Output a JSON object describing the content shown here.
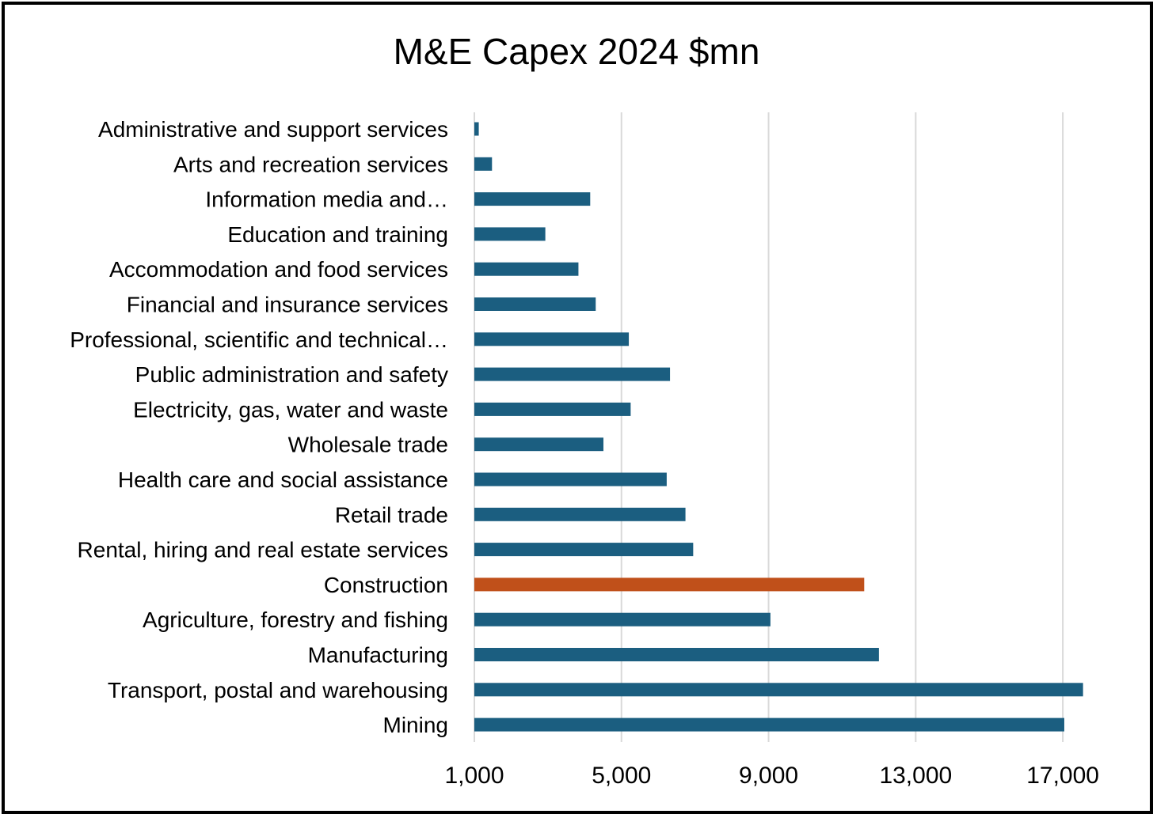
{
  "chart_data": {
    "type": "bar",
    "orientation": "horizontal",
    "title": "M&E Capex 2024 $mn",
    "xlabel": "",
    "ylabel": "",
    "xlim": [
      1000,
      19000
    ],
    "x_ticks": [
      1000,
      5000,
      9000,
      13000,
      17000
    ],
    "x_tick_labels": [
      "1,000",
      "5,000",
      "9,000",
      "13,000",
      "17,000"
    ],
    "grid": true,
    "colors": {
      "default": "#1b5e80",
      "highlight": "#c0501a"
    },
    "highlight": "Construction",
    "categories": [
      "Administrative and support services",
      "Arts and recreation services",
      "Information media and…",
      "Education and training",
      "Accommodation and food services",
      "Financial and insurance services",
      "Professional, scientific and technical…",
      "Public administration and safety",
      "Electricity, gas, water and waste",
      "Wholesale trade",
      "Health care and social assistance",
      "Retail trade",
      "Rental, hiring and real estate services",
      "Construction",
      "Agriculture, forestry and fishing",
      "Manufacturing",
      "Transport, postal and warehousing",
      "Mining"
    ],
    "values": [
      1120,
      1480,
      4150,
      2930,
      3830,
      4300,
      5200,
      6320,
      5250,
      4510,
      6230,
      6740,
      6950,
      11600,
      9050,
      12000,
      17550,
      17040
    ]
  }
}
